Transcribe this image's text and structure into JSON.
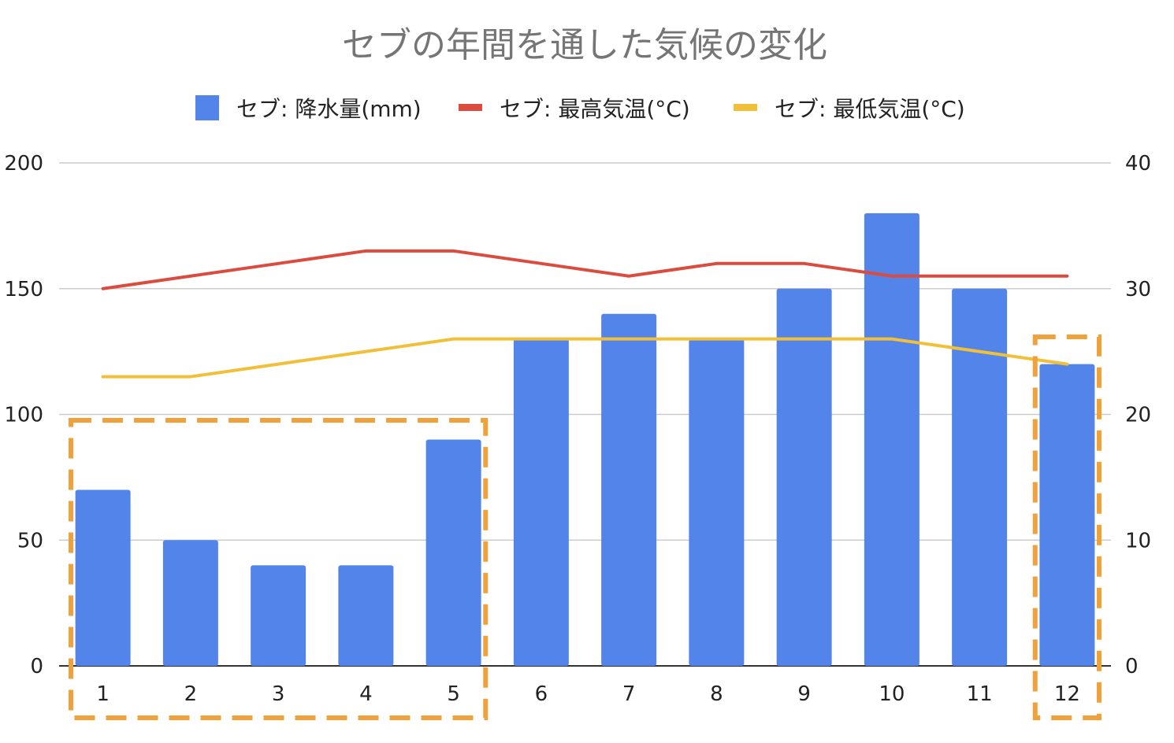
{
  "chart_data": {
    "type": "bar",
    "title": "セブの年間を通した気候の変化",
    "categories": [
      "1",
      "2",
      "3",
      "4",
      "5",
      "6",
      "7",
      "8",
      "9",
      "10",
      "11",
      "12"
    ],
    "series": [
      {
        "name": "セブ: 降水量(mm)",
        "type": "bar",
        "axis": "left",
        "color": "#5384ea",
        "values": [
          70,
          50,
          40,
          40,
          90,
          130,
          140,
          130,
          150,
          180,
          150,
          120
        ]
      },
      {
        "name": "セブ: 最高気温(°C)",
        "type": "line",
        "axis": "right",
        "color": "#db4c3f",
        "values": [
          30,
          31,
          32,
          33,
          33,
          32,
          31,
          32,
          32,
          31,
          31,
          31
        ]
      },
      {
        "name": "セブ: 最低気温(°C)",
        "type": "line",
        "axis": "right",
        "color": "#f2c038",
        "values": [
          23,
          23,
          24,
          25,
          26,
          26,
          26,
          26,
          26,
          26,
          25,
          24
        ]
      }
    ],
    "y_left": {
      "min": 0,
      "max": 200,
      "ticks": [
        "0",
        "50",
        "100",
        "150",
        "200"
      ]
    },
    "y_right": {
      "min": 0,
      "max": 40,
      "ticks": [
        "0",
        "10",
        "20",
        "30",
        "40"
      ]
    },
    "grid": true,
    "legend_position": "top",
    "highlight_boxes": [
      {
        "from_category": "1",
        "to_category": "5",
        "color": "#f0a13b",
        "style": "dashed"
      },
      {
        "from_category": "12",
        "to_category": "12",
        "color": "#f0a13b",
        "style": "dashed"
      }
    ]
  }
}
